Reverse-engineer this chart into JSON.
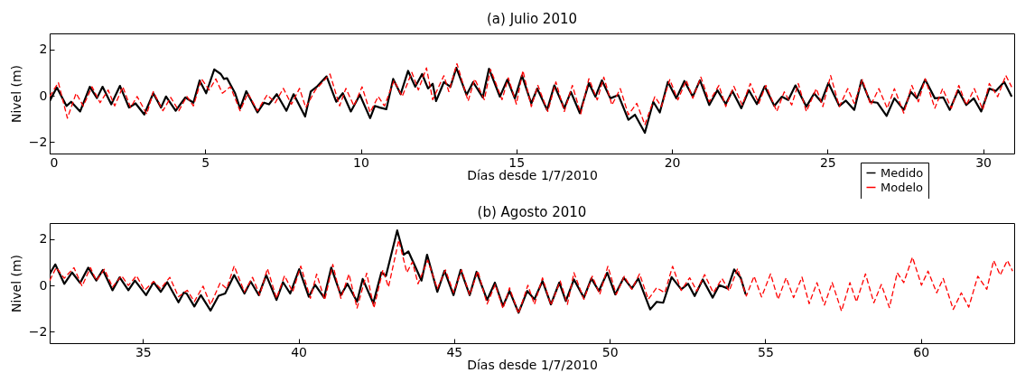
{
  "chart_data": [
    {
      "type": "line",
      "title": "(a) Julio 2010",
      "xlabel": "Días desde 1/7/2010",
      "ylabel": "Nivel (m)",
      "xlim": [
        0,
        31
      ],
      "xticks": [
        0,
        5,
        10,
        15,
        20,
        25,
        30
      ],
      "ylim": [
        -2.5,
        2.7
      ],
      "yticks": [
        -2,
        0,
        2
      ],
      "legend": "bottom right",
      "series": [
        {
          "name": "Medido",
          "color": "#000000",
          "line_style": "solid",
          "x": [
            0.0,
            0.23,
            0.54,
            0.69,
            0.98,
            1.29,
            1.52,
            1.7,
            1.98,
            2.26,
            2.55,
            2.76,
            3.04,
            3.33,
            3.58,
            3.74,
            4.05,
            4.36,
            4.62,
            4.82,
            5.03,
            5.29,
            5.5,
            5.6,
            5.7,
            5.96,
            6.12,
            6.32,
            6.68,
            6.89,
            7.05,
            7.3,
            7.61,
            7.84,
            8.21,
            8.39,
            8.6,
            8.9,
            9.21,
            9.42,
            9.68,
            9.97,
            10.3,
            10.45,
            10.61,
            10.82,
            11.04,
            11.28,
            11.52,
            11.75,
            11.97,
            12.16,
            12.31,
            12.42,
            12.67,
            12.88,
            13.07,
            13.4,
            13.61,
            13.92,
            14.12,
            14.47,
            14.71,
            14.95,
            15.18,
            15.48,
            15.67,
            15.99,
            16.22,
            16.54,
            16.75,
            17.04,
            17.33,
            17.54,
            17.75,
            18.02,
            18.28,
            18.6,
            18.81,
            19.13,
            19.4,
            19.61,
            19.87,
            20.14,
            20.4,
            20.67,
            20.9,
            21.2,
            21.46,
            21.73,
            21.94,
            22.23,
            22.47,
            22.73,
            22.98,
            23.29,
            23.53,
            23.74,
            23.97,
            24.32,
            24.57,
            24.8,
            25.03,
            25.38,
            25.59,
            25.86,
            26.09,
            26.37,
            26.6,
            26.9,
            27.15,
            27.45,
            27.68,
            27.87,
            28.14,
            28.45,
            28.72,
            28.93,
            29.2,
            29.46,
            29.7,
            29.94,
            30.2,
            30.41,
            30.68,
            30.92
          ],
          "values": [
            -0.23,
            0.36,
            -0.44,
            -0.26,
            -0.68,
            0.39,
            -0.1,
            0.39,
            -0.37,
            0.43,
            -0.51,
            -0.33,
            -0.81,
            0.11,
            -0.51,
            -0.03,
            -0.65,
            -0.07,
            -0.3,
            0.66,
            0.11,
            1.14,
            0.94,
            0.73,
            0.76,
            0.11,
            -0.55,
            0.2,
            -0.72,
            -0.3,
            -0.37,
            0.07,
            -0.65,
            0.07,
            -0.9,
            0.18,
            0.41,
            0.84,
            -0.26,
            0.11,
            -0.68,
            0.04,
            -0.97,
            -0.44,
            -0.51,
            -0.58,
            0.73,
            0.07,
            1.08,
            0.39,
            0.94,
            0.32,
            0.52,
            -0.23,
            0.59,
            0.39,
            1.21,
            0.04,
            0.59,
            -0.07,
            1.17,
            -0.04,
            0.7,
            -0.11,
            0.88,
            -0.33,
            0.31,
            -0.61,
            0.45,
            -0.54,
            0.17,
            -0.75,
            0.55,
            -0.04,
            0.67,
            -0.11,
            0.03,
            -1.04,
            -0.82,
            -1.6,
            -0.26,
            -0.72,
            0.6,
            -0.11,
            0.64,
            -0.04,
            0.67,
            -0.4,
            0.24,
            -0.36,
            0.21,
            -0.54,
            0.24,
            -0.36,
            0.41,
            -0.44,
            -0.04,
            -0.18,
            0.45,
            -0.47,
            0.1,
            -0.26,
            0.55,
            -0.44,
            -0.21,
            -0.61,
            0.67,
            -0.26,
            -0.3,
            -0.87,
            -0.11,
            -0.61,
            0.17,
            -0.11,
            0.7,
            -0.11,
            -0.07,
            -0.61,
            0.24,
            -0.4,
            -0.11,
            -0.68,
            0.31,
            0.21,
            0.6,
            -0.04
          ]
        },
        {
          "name": "Modelo",
          "color": "#ff0000",
          "line_style": "dashed",
          "x": [
            0.0,
            0.28,
            0.57,
            0.85,
            1.08,
            1.36,
            1.62,
            1.88,
            2.09,
            2.35,
            2.6,
            2.81,
            3.12,
            3.33,
            3.64,
            3.89,
            4.15,
            4.41,
            4.62,
            4.88,
            5.13,
            5.34,
            5.55,
            5.81,
            6.12,
            6.37,
            6.68,
            6.99,
            7.25,
            7.51,
            7.77,
            8.03,
            8.23,
            8.54,
            9.01,
            9.32,
            9.52,
            9.78,
            10.04,
            10.3,
            10.56,
            10.76,
            11.07,
            11.33,
            11.64,
            11.85,
            12.11,
            12.31,
            12.67,
            12.83,
            13.09,
            13.45,
            13.66,
            13.97,
            14.17,
            14.54,
            14.74,
            15.0,
            15.21,
            15.48,
            15.69,
            16.01,
            16.27,
            16.54,
            16.8,
            17.07,
            17.33,
            17.6,
            17.81,
            18.07,
            18.34,
            18.6,
            18.87,
            19.13,
            19.45,
            19.66,
            19.93,
            20.19,
            20.46,
            20.67,
            20.93,
            21.2,
            21.51,
            21.73,
            21.99,
            22.26,
            22.52,
            22.79,
            23.02,
            23.37,
            23.61,
            23.85,
            24.06,
            24.32,
            24.64,
            24.85,
            25.1,
            25.38,
            25.65,
            25.86,
            26.12,
            26.39,
            26.65,
            26.92,
            27.15,
            27.45,
            27.71,
            27.92,
            28.14,
            28.45,
            28.7,
            28.98,
            29.22,
            29.46,
            29.72,
            29.99,
            30.2,
            30.47,
            30.73,
            30.92
          ],
          "values": [
            -0.03,
            0.57,
            -0.97,
            0.11,
            -0.44,
            0.39,
            -0.3,
            0.25,
            -0.44,
            0.39,
            -0.51,
            -0.03,
            -0.79,
            0.18,
            -0.65,
            -0.07,
            -0.65,
            -0.03,
            -0.44,
            0.73,
            0.25,
            0.73,
            0.11,
            0.39,
            -0.65,
            0.11,
            -0.65,
            0.04,
            -0.3,
            0.32,
            -0.37,
            0.32,
            -0.51,
            0.25,
            0.94,
            -0.44,
            0.32,
            -0.44,
            0.39,
            -0.72,
            -0.03,
            -0.44,
            0.66,
            -0.03,
            1.01,
            0.25,
            1.21,
            -0.17,
            0.87,
            0.18,
            1.39,
            -0.23,
            0.73,
            -0.17,
            1.14,
            -0.17,
            0.78,
            -0.36,
            1.09,
            -0.47,
            0.45,
            -0.68,
            0.6,
            -0.68,
            0.45,
            -0.78,
            0.74,
            -0.18,
            0.81,
            -0.4,
            0.31,
            -0.82,
            -0.33,
            -1.25,
            -0.04,
            -0.47,
            0.7,
            -0.18,
            0.67,
            -0.11,
            0.81,
            -0.26,
            0.45,
            -0.47,
            0.41,
            -0.4,
            0.53,
            -0.33,
            0.45,
            -0.68,
            0.17,
            -0.4,
            0.53,
            -0.68,
            0.31,
            -0.47,
            0.88,
            -0.47,
            0.31,
            -0.33,
            0.7,
            -0.4,
            0.31,
            -0.54,
            0.31,
            -0.75,
            0.45,
            -0.26,
            0.74,
            -0.54,
            0.31,
            -0.54,
            0.45,
            -0.4,
            0.31,
            -0.61,
            0.53,
            -0.04,
            0.88,
            0.38
          ]
        }
      ]
    },
    {
      "type": "line",
      "title": "(b) Agosto 2010",
      "xlabel": "Días desde 1/7/2010",
      "ylabel": "Nivel (m)",
      "xlim": [
        32,
        63
      ],
      "xticks": [
        35,
        40,
        45,
        50,
        55,
        60
      ],
      "ylim": [
        -2.5,
        2.7
      ],
      "yticks": [
        -2,
        0,
        2
      ],
      "series": [
        {
          "color": "#000000",
          "line_style": "solid",
          "x": [
            32.0,
            32.18,
            32.47,
            32.72,
            32.98,
            33.24,
            33.5,
            33.71,
            34.02,
            34.25,
            34.53,
            34.74,
            35.1,
            35.34,
            35.57,
            35.78,
            36.14,
            36.31,
            36.4,
            36.65,
            36.86,
            37.17,
            37.43,
            37.64,
            37.93,
            38.26,
            38.46,
            38.72,
            38.96,
            39.29,
            39.5,
            39.73,
            40.02,
            40.33,
            40.53,
            40.82,
            41.05,
            41.36,
            41.57,
            41.88,
            42.06,
            42.4,
            42.66,
            42.81,
            43.17,
            43.38,
            43.53,
            43.74,
            43.95,
            44.13,
            44.46,
            44.69,
            44.98,
            45.21,
            45.5,
            45.72,
            46.06,
            46.31,
            46.57,
            46.78,
            47.07,
            47.35,
            47.58,
            47.84,
            48.11,
            48.38,
            48.59,
            48.85,
            49.17,
            49.41,
            49.65,
            49.92,
            50.18,
            50.45,
            50.71,
            50.92,
            51.3,
            51.51,
            51.72,
            51.99,
            52.3,
            52.52,
            52.73,
            52.99,
            53.31,
            53.52,
            53.79,
            54.0,
            54.21,
            54.37
          ],
          "values": [
            0.49,
            0.91,
            0.07,
            0.56,
            0.11,
            0.77,
            0.21,
            0.67,
            -0.21,
            0.35,
            -0.21,
            0.21,
            -0.42,
            0.14,
            -0.28,
            0.14,
            -0.73,
            -0.31,
            -0.35,
            -0.91,
            -0.42,
            -1.09,
            -0.45,
            -0.35,
            0.45,
            -0.35,
            0.17,
            -0.42,
            0.45,
            -0.63,
            0.14,
            -0.35,
            0.7,
            -0.49,
            0.03,
            -0.53,
            0.77,
            -0.42,
            0.07,
            -0.7,
            0.28,
            -0.77,
            0.56,
            0.42,
            2.38,
            1.33,
            1.47,
            0.84,
            0.21,
            1.33,
            -0.28,
            0.63,
            -0.42,
            0.67,
            -0.42,
            0.59,
            -0.63,
            0.12,
            -0.89,
            -0.24,
            -1.18,
            -0.24,
            -0.6,
            0.19,
            -0.82,
            0.12,
            -0.68,
            0.26,
            -0.53,
            0.3,
            -0.24,
            0.55,
            -0.39,
            0.33,
            -0.13,
            0.3,
            -1.04,
            -0.71,
            -0.75,
            0.36,
            -0.17,
            0.07,
            -0.46,
            0.26,
            -0.53,
            0.01,
            -0.13,
            0.69,
            0.33,
            -0.39
          ]
        },
        {
          "color": "#ff0000",
          "line_style": "dashed",
          "x": [
            32.0,
            32.21,
            32.47,
            32.78,
            33.04,
            33.31,
            33.5,
            33.76,
            34.02,
            34.31,
            34.53,
            34.79,
            35.05,
            35.34,
            35.57,
            35.86,
            36.14,
            36.42,
            36.65,
            36.93,
            37.17,
            37.48,
            37.69,
            37.93,
            38.26,
            38.52,
            38.75,
            39.0,
            39.29,
            39.55,
            39.81,
            40.07,
            40.38,
            40.58,
            40.84,
            41.1,
            41.36,
            41.62,
            41.88,
            42.19,
            42.42,
            42.71,
            42.89,
            43.22,
            43.48,
            43.66,
            43.84,
            44.15,
            44.46,
            44.72,
            44.98,
            45.24,
            45.5,
            45.76,
            46.06,
            46.32,
            46.57,
            46.78,
            47.07,
            47.37,
            47.58,
            47.84,
            48.11,
            48.41,
            48.64,
            48.85,
            49.17,
            49.44,
            49.68,
            49.94,
            50.21,
            50.47,
            50.71,
            50.96,
            51.24,
            51.51,
            51.77,
            52.02,
            52.3,
            52.57,
            52.8,
            53.05,
            53.33,
            53.61,
            53.84,
            54.11,
            54.39,
            54.64,
            54.88,
            55.17,
            55.41,
            55.67,
            55.91,
            56.18,
            56.41,
            56.66,
            56.9,
            57.15,
            57.45,
            57.72,
            57.93,
            58.22,
            58.49,
            58.73,
            58.99,
            59.24,
            59.45,
            59.73,
            60.02,
            60.23,
            60.51,
            60.72,
            61.04,
            61.3,
            61.54,
            61.83,
            62.12,
            62.34,
            62.55,
            62.78,
            62.95
          ],
          "values": [
            0.21,
            0.77,
            0.31,
            0.77,
            -0.03,
            0.77,
            0.21,
            0.7,
            -0.07,
            0.42,
            0.0,
            0.42,
            -0.21,
            0.17,
            -0.14,
            0.35,
            -0.49,
            -0.21,
            -0.7,
            -0.03,
            -0.84,
            0.11,
            -0.14,
            0.84,
            -0.28,
            0.35,
            -0.42,
            0.73,
            -0.56,
            0.42,
            -0.28,
            0.84,
            -0.56,
            0.49,
            -0.63,
            0.91,
            -0.56,
            0.49,
            -0.98,
            0.53,
            -0.98,
            0.67,
            -0.07,
            1.96,
            0.56,
            1.02,
            0.07,
            1.09,
            -0.14,
            0.67,
            -0.31,
            0.67,
            -0.42,
            0.63,
            -0.8,
            0.04,
            -1.0,
            -0.1,
            -1.22,
            0.01,
            -0.82,
            0.33,
            -0.85,
            0.19,
            -0.82,
            0.55,
            -0.6,
            0.4,
            -0.39,
            0.83,
            -0.39,
            0.4,
            -0.17,
            0.5,
            -0.6,
            -0.1,
            -0.32,
            0.83,
            -0.22,
            0.33,
            -0.24,
            0.47,
            -0.32,
            0.3,
            -0.24,
            0.73,
            -0.46,
            0.4,
            -0.5,
            0.5,
            -0.6,
            0.33,
            -0.53,
            0.36,
            -0.79,
            0.12,
            -0.85,
            0.12,
            -1.11,
            0.12,
            -0.71,
            0.5,
            -0.75,
            0.04,
            -0.96,
            0.55,
            0.12,
            1.22,
            0.01,
            0.62,
            -0.32,
            0.3,
            -1.04,
            -0.32,
            -0.94,
            0.4,
            -0.17,
            1.08,
            0.45,
            1.08,
            0.62
          ]
        }
      ]
    }
  ]
}
